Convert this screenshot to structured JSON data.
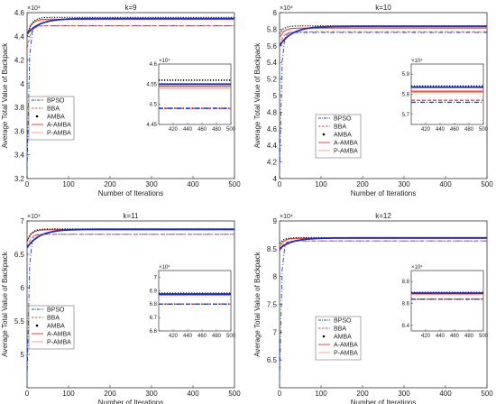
{
  "chart_data": [
    {
      "type": "line",
      "title": "k=9",
      "xlabel": "Number of Iterations",
      "ylabel": "Average Total Value of Backpack",
      "exponent_label": "×10⁴",
      "xlim": [
        0,
        500
      ],
      "ylim": [
        3.2,
        4.6
      ],
      "xticks": [
        0,
        100,
        200,
        300,
        400,
        500
      ],
      "yticks": [
        3.2,
        3.4,
        3.6,
        3.8,
        4.0,
        4.2,
        4.4,
        4.6
      ],
      "legend": "left-middle",
      "series": [
        {
          "name": "BPSO",
          "color": "#1f3fd9",
          "style": "dashdot",
          "start": 3.4,
          "final": 4.49
        },
        {
          "name": "BBA",
          "color": "#e8453c",
          "style": "dashed",
          "start": 4.3,
          "final": 4.49
        },
        {
          "name": "AMBA",
          "color": "#000000",
          "style": "dotted",
          "start": 4.4,
          "final": 4.56
        },
        {
          "name": "A-AMBA",
          "color": "#e8453c",
          "style": "solid",
          "start": 4.42,
          "final": 4.545
        },
        {
          "name": "P-AMBA",
          "color": "#ff9d8a",
          "style": "solid",
          "start": 4.42,
          "final": 4.54
        }
      ],
      "thick_blue_line": {
        "color": "#1f2fb0",
        "start": 4.42,
        "final": 4.55
      },
      "inset": {
        "exponent_label": "×10⁴",
        "xlim": [
          400,
          500
        ],
        "ylim": [
          4.45,
          4.6
        ],
        "xticks": [
          420,
          440,
          460,
          480,
          500
        ],
        "yticks": [
          4.45,
          4.5,
          4.55,
          4.6
        ],
        "ytick_labels": [
          "4.45",
          "4.5",
          "4.55",
          "4.6"
        ]
      }
    },
    {
      "type": "line",
      "title": "k=10",
      "xlabel": "Number of Iterations",
      "ylabel": "Average Total Value of Backpack",
      "exponent_label": "×10⁴",
      "xlim": [
        0,
        500
      ],
      "ylim": [
        4.0,
        6.0
      ],
      "xticks": [
        0,
        100,
        200,
        300,
        400,
        500
      ],
      "yticks": [
        4.0,
        4.2,
        4.4,
        4.6,
        4.8,
        5.0,
        5.2,
        5.4,
        5.6,
        5.8,
        6.0
      ],
      "legend": "right-middle",
      "series": [
        {
          "name": "BPSO",
          "color": "#1f3fd9",
          "style": "dashdot",
          "start": 5.5,
          "final": 5.76
        },
        {
          "name": "BBA",
          "color": "#e8453c",
          "style": "dashed",
          "start": 5.6,
          "final": 5.77
        },
        {
          "name": "AMBA",
          "color": "#000000",
          "style": "dotted",
          "start": 5.75,
          "final": 5.84
        },
        {
          "name": "A-AMBA",
          "color": "#e8453c",
          "style": "solid",
          "start": 5.7,
          "final": 5.815
        },
        {
          "name": "P-AMBA",
          "color": "#ff9d8a",
          "style": "solid",
          "start": 5.7,
          "final": 5.81
        }
      ],
      "thick_blue_line": {
        "color": "#1f2fb0",
        "start": 5.6,
        "final": 5.835
      },
      "inset": {
        "exponent_label": "×10⁴",
        "xlim": [
          400,
          500
        ],
        "ylim": [
          5.65,
          5.95
        ],
        "xticks": [
          420,
          440,
          460,
          480,
          500
        ],
        "yticks": [
          5.7,
          5.8,
          5.9
        ],
        "ytick_labels": [
          "5.7",
          "5.8",
          "5.9"
        ]
      }
    },
    {
      "type": "line",
      "title": "k=11",
      "xlabel": "Number of Iterations",
      "ylabel": "Average Total Value of Backpack",
      "exponent_label": "×10⁴",
      "xlim": [
        0,
        500
      ],
      "ylim": [
        4.5,
        7.0
      ],
      "xticks": [
        0,
        100,
        200,
        300,
        400,
        500
      ],
      "yticks": [
        5.0,
        5.5,
        6.0,
        6.5,
        7.0
      ],
      "legend": "left-middle",
      "series": [
        {
          "name": "BPSO",
          "color": "#1f3fd9",
          "style": "dashdot",
          "start": 6.5,
          "final": 6.8
        },
        {
          "name": "BBA",
          "color": "#e8453c",
          "style": "dashed",
          "start": 6.6,
          "final": 6.8
        },
        {
          "name": "AMBA",
          "color": "#000000",
          "style": "dotted",
          "start": 6.7,
          "final": 6.88
        },
        {
          "name": "A-AMBA",
          "color": "#e8453c",
          "style": "solid",
          "start": 6.7,
          "final": 6.87
        },
        {
          "name": "P-AMBA",
          "color": "#ff9d8a",
          "style": "solid",
          "start": 6.7,
          "final": 6.865
        }
      ],
      "thick_blue_line": {
        "color": "#1f2fb0",
        "start": 6.6,
        "final": 6.875
      },
      "inset": {
        "exponent_label": "×10⁴",
        "xlim": [
          400,
          500
        ],
        "ylim": [
          6.6,
          7.05
        ],
        "xticks": [
          420,
          440,
          460,
          480,
          500
        ],
        "yticks": [
          6.6,
          6.7,
          6.8,
          6.9,
          7.0
        ],
        "ytick_labels": [
          "6.6",
          "6.7",
          "6.8",
          "6.9",
          "7"
        ]
      }
    },
    {
      "type": "line",
      "title": "k=12",
      "xlabel": "Number of Iterations",
      "ylabel": "Average Total Value of Backpack",
      "exponent_label": "×10⁴",
      "xlim": [
        0,
        500
      ],
      "ylim": [
        6.0,
        9.0
      ],
      "xticks": [
        0,
        100,
        200,
        300,
        400,
        500
      ],
      "yticks": [
        6.5,
        7.0,
        7.5,
        8.0,
        8.5,
        9.0
      ],
      "legend": "right-middle",
      "series": [
        {
          "name": "BPSO",
          "color": "#1f3fd9",
          "style": "dashdot",
          "start": 8.4,
          "final": 8.64
        },
        {
          "name": "BBA",
          "color": "#e8453c",
          "style": "dashed",
          "start": 8.45,
          "final": 8.64
        },
        {
          "name": "AMBA",
          "color": "#000000",
          "style": "dotted",
          "start": 8.6,
          "final": 8.7
        },
        {
          "name": "A-AMBA",
          "color": "#e8453c",
          "style": "solid",
          "start": 8.55,
          "final": 8.69
        },
        {
          "name": "P-AMBA",
          "color": "#ff9d8a",
          "style": "solid",
          "start": 8.55,
          "final": 8.685
        }
      ],
      "thick_blue_line": {
        "color": "#1f2fb0",
        "start": 8.5,
        "final": 8.695
      },
      "inset": {
        "exponent_label": "×10⁴",
        "xlim": [
          400,
          500
        ],
        "ylim": [
          8.35,
          8.9
        ],
        "xticks": [
          420,
          440,
          460,
          480,
          500
        ],
        "yticks": [
          8.4,
          8.6,
          8.8
        ],
        "ytick_labels": [
          "8.4",
          "8.6",
          "8.8"
        ]
      }
    }
  ]
}
